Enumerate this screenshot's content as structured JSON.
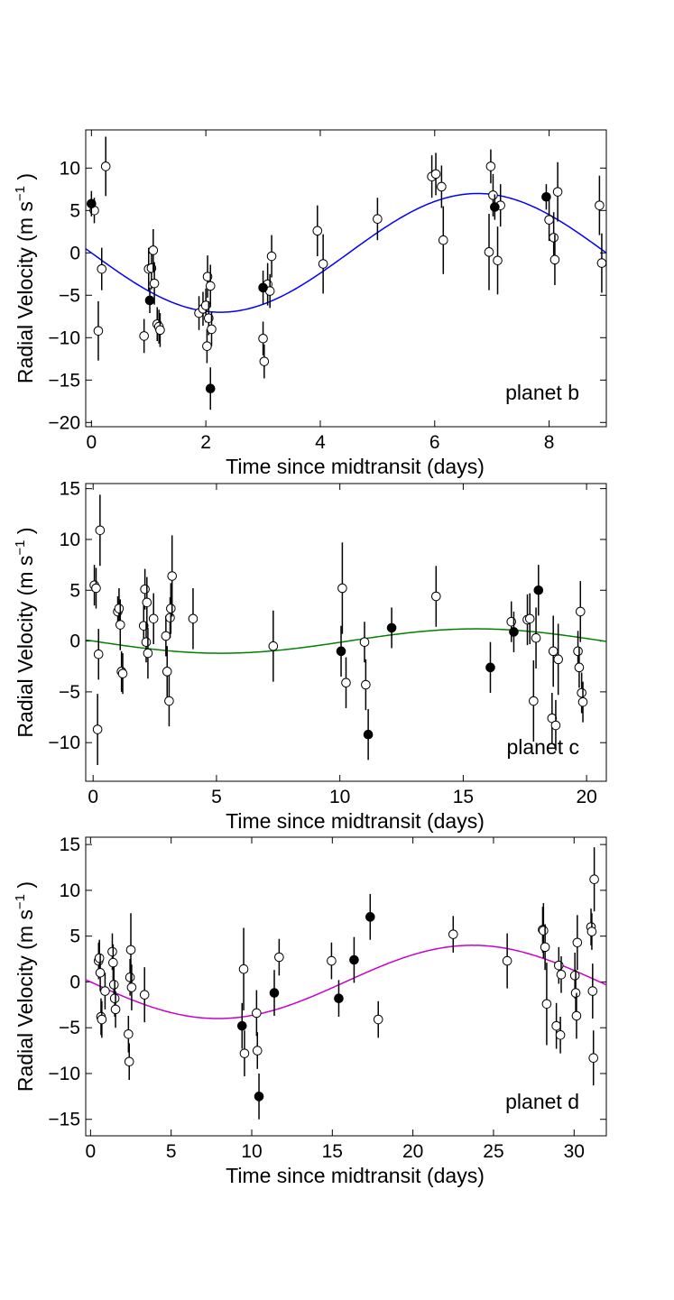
{
  "chart_data": [
    {
      "type": "scatter",
      "title": "",
      "annotation": "planet b",
      "xlabel": "Time since midtransit (days)",
      "ylabel_prefix": "Radial Velocity (m s",
      "ylabel_exp": "−1",
      "ylabel_suffix": ")",
      "xlim": [
        -0.1,
        9.0
      ],
      "ylim": [
        -20.5,
        14.5
      ],
      "xticks": [
        0,
        2,
        4,
        6,
        8
      ],
      "yticks": [
        -20,
        -15,
        -10,
        -5,
        0,
        5,
        10
      ],
      "curve_color": "#0000ff",
      "model": {
        "amplitude": 7.0,
        "period": 9.0,
        "phase_shift": 0
      },
      "series": [
        {
          "name": "open",
          "fill": "#ffffff",
          "points": [
            [
              0.05,
              5.0,
              1.5
            ],
            [
              0.12,
              -9.2,
              3.5
            ],
            [
              0.18,
              -1.9,
              2.5
            ],
            [
              0.25,
              10.2,
              3.5
            ],
            [
              0.92,
              -9.8,
              2.0
            ],
            [
              1.0,
              -1.9,
              2.5
            ],
            [
              1.05,
              -1.8,
              2.5
            ],
            [
              1.08,
              0.3,
              2.5
            ],
            [
              1.1,
              -3.6,
              2.5
            ],
            [
              1.15,
              -8.4,
              2.0
            ],
            [
              1.18,
              -8.7,
              2.0
            ],
            [
              1.2,
              -9.1,
              2.0
            ],
            [
              1.88,
              -7.1,
              2.0
            ],
            [
              1.95,
              -6.6,
              2.0
            ],
            [
              2.0,
              -6.2,
              2.0
            ],
            [
              2.02,
              -11.0,
              2.0
            ],
            [
              2.03,
              -2.8,
              2.5
            ],
            [
              2.05,
              -7.7,
              2.0
            ],
            [
              2.08,
              -3.9,
              2.5
            ],
            [
              2.1,
              -9.0,
              2.0
            ],
            [
              3.0,
              -10.1,
              2.0
            ],
            [
              3.02,
              -12.8,
              2.0
            ],
            [
              3.08,
              -3.7,
              2.5
            ],
            [
              3.12,
              -4.5,
              2.0
            ],
            [
              3.15,
              -0.4,
              2.5
            ],
            [
              3.95,
              2.6,
              3.0
            ],
            [
              4.05,
              -1.3,
              3.5
            ],
            [
              5.0,
              4.0,
              2.5
            ],
            [
              5.95,
              9.0,
              2.5
            ],
            [
              6.02,
              9.3,
              2.5
            ],
            [
              6.12,
              7.8,
              2.5
            ],
            [
              6.15,
              1.5,
              4.0
            ],
            [
              6.95,
              0.1,
              4.5
            ],
            [
              6.98,
              10.2,
              2.0
            ],
            [
              7.02,
              6.8,
              2.5
            ],
            [
              7.1,
              -0.9,
              4.0
            ],
            [
              7.15,
              5.6,
              2.5
            ],
            [
              8.0,
              3.9,
              2.5
            ],
            [
              8.08,
              1.8,
              3.0
            ],
            [
              8.1,
              -0.8,
              3.0
            ],
            [
              8.15,
              7.2,
              3.5
            ],
            [
              8.88,
              5.6,
              3.5
            ],
            [
              8.92,
              -1.2,
              3.5
            ]
          ]
        },
        {
          "name": "filled",
          "fill": "#000000",
          "points": [
            [
              0.0,
              5.8,
              1.5
            ],
            [
              1.02,
              -5.6,
              1.5
            ],
            [
              2.08,
              -16.0,
              2.5
            ],
            [
              3.0,
              -4.1,
              2.0
            ],
            [
              7.05,
              5.4,
              1.5
            ],
            [
              7.95,
              6.6,
              1.5
            ]
          ]
        }
      ]
    },
    {
      "type": "scatter",
      "title": "",
      "annotation": "planet c",
      "xlabel": "Time since midtransit (days)",
      "ylabel_prefix": "Radial Velocity (m s",
      "ylabel_exp": "−1",
      "ylabel_suffix": ")",
      "xlim": [
        -0.3,
        20.8
      ],
      "ylim": [
        -13.8,
        15.5
      ],
      "xticks": [
        0,
        5,
        10,
        15,
        20
      ],
      "yticks": [
        -10,
        -5,
        0,
        5,
        10,
        15
      ],
      "curve_color": "#008000",
      "model": {
        "amplitude": 1.2,
        "period": 20.7,
        "phase_shift": 0
      },
      "series": [
        {
          "name": "open",
          "fill": "#ffffff",
          "points": [
            [
              0.05,
              5.5,
              2.0
            ],
            [
              0.12,
              5.2,
              2.0
            ],
            [
              0.18,
              -8.7,
              3.5
            ],
            [
              0.22,
              -1.3,
              2.5
            ],
            [
              0.28,
              10.9,
              3.5
            ],
            [
              1.0,
              2.9,
              1.5
            ],
            [
              1.05,
              3.2,
              2.0
            ],
            [
              1.1,
              1.6,
              2.5
            ],
            [
              1.15,
              -3.0,
              2.0
            ],
            [
              1.2,
              -3.2,
              2.0
            ],
            [
              2.05,
              1.5,
              2.0
            ],
            [
              2.1,
              5.1,
              2.0
            ],
            [
              2.15,
              -0.1,
              2.0
            ],
            [
              2.18,
              3.8,
              2.5
            ],
            [
              2.22,
              -1.2,
              2.5
            ],
            [
              2.45,
              2.2,
              2.5
            ],
            [
              2.95,
              0.5,
              2.0
            ],
            [
              3.0,
              -3.0,
              2.5
            ],
            [
              3.08,
              -5.9,
              2.5
            ],
            [
              3.12,
              2.3,
              2.0
            ],
            [
              3.15,
              3.2,
              2.5
            ],
            [
              3.2,
              6.4,
              4.0
            ],
            [
              4.05,
              2.2,
              3.0
            ],
            [
              7.3,
              -0.5,
              3.5
            ],
            [
              10.1,
              5.2,
              4.5
            ],
            [
              10.25,
              -4.1,
              2.5
            ],
            [
              11.0,
              -0.1,
              2.0
            ],
            [
              11.05,
              -4.3,
              2.5
            ],
            [
              13.9,
              4.4,
              3.0
            ],
            [
              16.95,
              1.9,
              2.0
            ],
            [
              17.6,
              2.1,
              2.5
            ],
            [
              17.7,
              2.2,
              2.5
            ],
            [
              17.85,
              -5.9,
              4.0
            ],
            [
              17.95,
              0.3,
              3.0
            ],
            [
              18.6,
              -7.6,
              2.5
            ],
            [
              18.65,
              -1.0,
              3.5
            ],
            [
              18.75,
              -8.3,
              2.5
            ],
            [
              18.85,
              -1.8,
              3.5
            ],
            [
              19.65,
              -1.0,
              2.0
            ],
            [
              19.7,
              -2.6,
              2.0
            ],
            [
              19.75,
              2.9,
              3.0
            ],
            [
              19.8,
              -5.1,
              2.0
            ],
            [
              19.85,
              -6.0,
              2.0
            ]
          ]
        },
        {
          "name": "filled",
          "fill": "#000000",
          "points": [
            [
              10.05,
              -1.0,
              2.5
            ],
            [
              11.15,
              -9.2,
              2.5
            ],
            [
              12.1,
              1.3,
              2.0
            ],
            [
              16.1,
              -2.6,
              2.5
            ],
            [
              17.05,
              0.9,
              2.0
            ],
            [
              18.05,
              5.0,
              2.5
            ]
          ]
        }
      ]
    },
    {
      "type": "scatter",
      "title": "",
      "annotation": "planet d",
      "xlabel": "Time since midtransit (days)",
      "ylabel_prefix": "Radial Velocity (m s",
      "ylabel_exp": "−1",
      "ylabel_suffix": ")",
      "xlim": [
        -0.3,
        32.0
      ],
      "ylim": [
        -16.8,
        15.8
      ],
      "xticks": [
        0,
        5,
        10,
        15,
        20,
        25,
        30
      ],
      "yticks": [
        -15,
        -10,
        -5,
        0,
        5,
        10,
        15
      ],
      "curve_color": "#c800c8",
      "model": {
        "amplitude": 4.0,
        "period": 31.6,
        "phase_shift": 0
      },
      "series": [
        {
          "name": "open",
          "fill": "#ffffff",
          "points": [
            [
              0.5,
              2.3,
              2.0
            ],
            [
              0.55,
              2.6,
              2.0
            ],
            [
              0.6,
              1.0,
              2.0
            ],
            [
              0.65,
              -3.8,
              2.0
            ],
            [
              0.7,
              -4.1,
              2.0
            ],
            [
              0.9,
              -1.0,
              2.0
            ],
            [
              1.35,
              3.3,
              2.0
            ],
            [
              1.4,
              2.1,
              2.0
            ],
            [
              1.45,
              -0.3,
              2.0
            ],
            [
              1.5,
              -1.8,
              2.0
            ],
            [
              1.55,
              -3.0,
              2.0
            ],
            [
              2.35,
              -5.7,
              2.0
            ],
            [
              2.4,
              -8.7,
              2.0
            ],
            [
              2.45,
              0.5,
              2.0
            ],
            [
              2.5,
              3.5,
              4.0
            ],
            [
              2.55,
              -0.6,
              2.5
            ],
            [
              3.35,
              -1.4,
              3.0
            ],
            [
              9.5,
              1.4,
              4.5
            ],
            [
              9.55,
              -7.8,
              2.5
            ],
            [
              10.3,
              -3.4,
              2.5
            ],
            [
              10.35,
              -7.5,
              2.0
            ],
            [
              11.7,
              2.7,
              2.0
            ],
            [
              14.95,
              2.3,
              2.0
            ],
            [
              17.85,
              -4.1,
              2.0
            ],
            [
              22.5,
              5.2,
              2.0
            ],
            [
              25.85,
              2.3,
              3.0
            ],
            [
              28.05,
              5.7,
              2.5
            ],
            [
              28.1,
              5.6,
              3.0
            ],
            [
              28.2,
              3.8,
              2.5
            ],
            [
              28.3,
              -2.4,
              4.5
            ],
            [
              28.9,
              -4.8,
              2.5
            ],
            [
              29.05,
              1.8,
              2.0
            ],
            [
              29.15,
              -5.8,
              2.0
            ],
            [
              29.2,
              0.8,
              2.0
            ],
            [
              30.05,
              0.7,
              2.5
            ],
            [
              30.1,
              -1.2,
              2.5
            ],
            [
              30.15,
              -3.7,
              2.5
            ],
            [
              30.2,
              4.3,
              3.0
            ],
            [
              31.05,
              6.0,
              2.0
            ],
            [
              31.1,
              5.5,
              2.0
            ],
            [
              31.15,
              -1.0,
              3.0
            ],
            [
              31.2,
              -8.3,
              3.0
            ],
            [
              31.25,
              11.2,
              3.5
            ]
          ]
        },
        {
          "name": "filled",
          "fill": "#000000",
          "points": [
            [
              9.4,
              -4.8,
              2.5
            ],
            [
              10.45,
              -12.5,
              2.5
            ],
            [
              11.4,
              -1.2,
              2.5
            ],
            [
              15.4,
              -1.8,
              2.0
            ],
            [
              16.35,
              2.4,
              2.5
            ],
            [
              17.35,
              7.1,
              2.5
            ]
          ]
        }
      ]
    }
  ]
}
